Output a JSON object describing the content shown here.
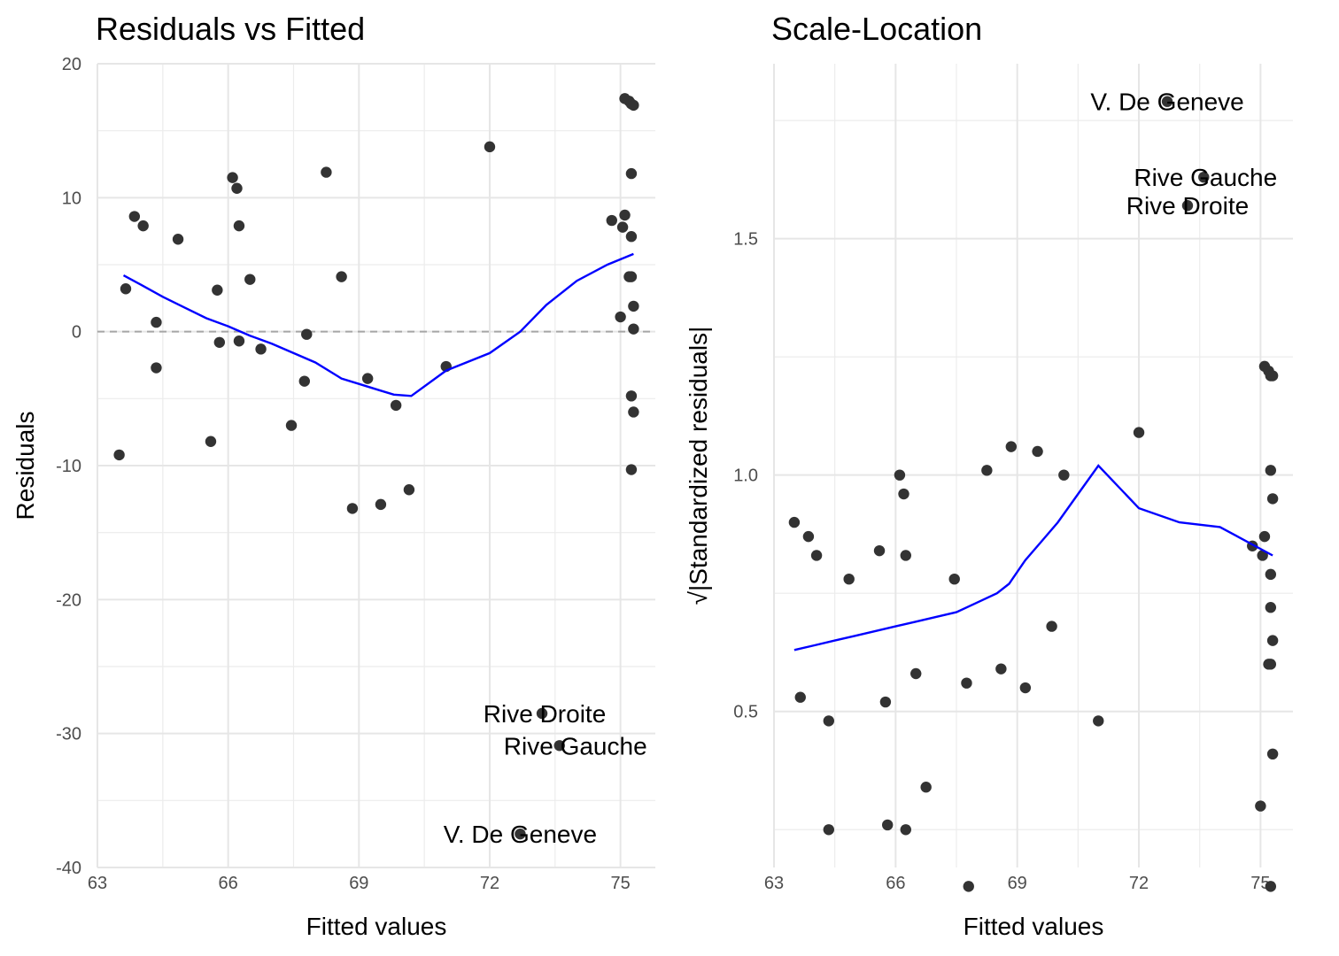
{
  "chart_data": [
    {
      "type": "scatter",
      "title": "Residuals vs Fitted",
      "xlabel": "Fitted values",
      "ylabel": "Residuals",
      "xlim": [
        63,
        75.8
      ],
      "ylim": [
        -40,
        20
      ],
      "xticks": [
        63,
        66,
        69,
        72,
        75
      ],
      "yticks": [
        -40,
        -30,
        -20,
        -10,
        0,
        10,
        20
      ],
      "grid": true,
      "reference_line": {
        "y": 0,
        "style": "dashed",
        "color": "#a6a6a6"
      },
      "point_color": "#333333",
      "smooth_color": "#0000ff",
      "points": [
        [
          63.5,
          -9.2
        ],
        [
          63.65,
          3.2
        ],
        [
          63.85,
          8.6
        ],
        [
          64.05,
          7.9
        ],
        [
          64.35,
          0.7
        ],
        [
          64.35,
          -2.7
        ],
        [
          64.85,
          6.9
        ],
        [
          65.6,
          -8.2
        ],
        [
          65.75,
          3.1
        ],
        [
          65.8,
          -0.8
        ],
        [
          66.1,
          11.5
        ],
        [
          66.2,
          10.7
        ],
        [
          66.25,
          7.9
        ],
        [
          66.25,
          -0.7
        ],
        [
          66.5,
          3.9
        ],
        [
          66.75,
          -1.3
        ],
        [
          67.45,
          -7.0
        ],
        [
          67.75,
          -3.7
        ],
        [
          67.8,
          -0.2
        ],
        [
          68.25,
          11.9
        ],
        [
          68.6,
          4.1
        ],
        [
          68.85,
          -13.2
        ],
        [
          69.2,
          -3.5
        ],
        [
          69.5,
          -12.9
        ],
        [
          69.85,
          -5.5
        ],
        [
          70.15,
          -11.8
        ],
        [
          71.0,
          -2.6
        ],
        [
          72.0,
          13.8
        ],
        [
          72.7,
          -37.5
        ],
        [
          73.2,
          -28.5
        ],
        [
          73.6,
          -30.9
        ],
        [
          74.8,
          8.3
        ],
        [
          75.0,
          1.1
        ],
        [
          75.05,
          7.8
        ],
        [
          75.1,
          8.7
        ],
        [
          75.1,
          17.4
        ],
        [
          75.2,
          17.2
        ],
        [
          75.2,
          4.1
        ],
        [
          75.25,
          7.1
        ],
        [
          75.25,
          17.0
        ],
        [
          75.3,
          16.9
        ],
        [
          75.25,
          4.1
        ],
        [
          75.25,
          11.8
        ],
        [
          75.3,
          1.9
        ],
        [
          75.3,
          0.2
        ],
        [
          75.25,
          -4.8
        ],
        [
          75.3,
          -6.0
        ],
        [
          75.25,
          -10.3
        ]
      ],
      "smooth": [
        [
          63.6,
          4.2
        ],
        [
          64.0,
          3.5
        ],
        [
          64.5,
          2.6
        ],
        [
          65.0,
          1.8
        ],
        [
          65.5,
          1.0
        ],
        [
          66.0,
          0.4
        ],
        [
          66.5,
          -0.3
        ],
        [
          67.0,
          -0.9
        ],
        [
          67.5,
          -1.6
        ],
        [
          68.0,
          -2.3
        ],
        [
          68.6,
          -3.5
        ],
        [
          69.0,
          -3.9
        ],
        [
          69.5,
          -4.4
        ],
        [
          69.8,
          -4.7
        ],
        [
          70.2,
          -4.8
        ],
        [
          71.0,
          -2.9
        ],
        [
          72.0,
          -1.6
        ],
        [
          72.7,
          0.0
        ],
        [
          73.3,
          2.0
        ],
        [
          74.0,
          3.8
        ],
        [
          74.7,
          5.0
        ],
        [
          75.3,
          5.8
        ]
      ],
      "annotations": [
        {
          "text": "V. De Geneve",
          "x": 72.7,
          "y": -37.5
        },
        {
          "text": "Rive Droite",
          "x": 73.2,
          "y": -28.5
        },
        {
          "text": "Rive Gauche",
          "x": 73.6,
          "y": -30.9
        }
      ]
    },
    {
      "type": "scatter",
      "title": "Scale-Location",
      "xlabel": "Fitted values",
      "ylabel": "√|Standardized residuals|",
      "xlim": [
        63,
        75.8
      ],
      "ylim": [
        0.17,
        1.87
      ],
      "xticks": [
        63,
        66,
        69,
        72,
        75
      ],
      "yticks": [
        0.5,
        1.0,
        1.5
      ],
      "grid": true,
      "point_color": "#333333",
      "smooth_color": "#0000ff",
      "points": [
        [
          63.5,
          0.9
        ],
        [
          63.65,
          0.53
        ],
        [
          63.85,
          0.87
        ],
        [
          64.05,
          0.83
        ],
        [
          64.35,
          0.48
        ],
        [
          64.35,
          0.25
        ],
        [
          64.85,
          0.78
        ],
        [
          65.6,
          0.84
        ],
        [
          65.75,
          0.52
        ],
        [
          65.8,
          0.26
        ],
        [
          66.1,
          1.0
        ],
        [
          66.2,
          0.96
        ],
        [
          66.25,
          0.83
        ],
        [
          66.25,
          0.25
        ],
        [
          66.5,
          0.58
        ],
        [
          66.75,
          0.34
        ],
        [
          67.45,
          0.78
        ],
        [
          67.75,
          0.56
        ],
        [
          67.8,
          0.13
        ],
        [
          68.25,
          1.01
        ],
        [
          68.6,
          0.59
        ],
        [
          68.85,
          1.06
        ],
        [
          69.2,
          0.55
        ],
        [
          69.5,
          1.05
        ],
        [
          69.85,
          0.68
        ],
        [
          70.15,
          1.0
        ],
        [
          71.0,
          0.48
        ],
        [
          72.0,
          1.09
        ],
        [
          72.7,
          1.79
        ],
        [
          73.2,
          1.57
        ],
        [
          73.6,
          1.63
        ],
        [
          74.8,
          0.85
        ],
        [
          75.0,
          0.3
        ],
        [
          75.05,
          0.83
        ],
        [
          75.1,
          0.87
        ],
        [
          75.1,
          1.23
        ],
        [
          75.2,
          1.22
        ],
        [
          75.2,
          0.6
        ],
        [
          75.25,
          0.79
        ],
        [
          75.25,
          1.21
        ],
        [
          75.3,
          1.21
        ],
        [
          75.25,
          0.6
        ],
        [
          75.25,
          1.01
        ],
        [
          75.3,
          0.65
        ],
        [
          75.3,
          0.41
        ],
        [
          75.25,
          0.72
        ],
        [
          75.3,
          0.95
        ],
        [
          75.25,
          0.13
        ]
      ],
      "smooth": [
        [
          63.5,
          0.63
        ],
        [
          64.0,
          0.64
        ],
        [
          64.5,
          0.65
        ],
        [
          65.0,
          0.66
        ],
        [
          65.5,
          0.67
        ],
        [
          66.0,
          0.68
        ],
        [
          66.5,
          0.69
        ],
        [
          67.0,
          0.7
        ],
        [
          67.5,
          0.71
        ],
        [
          68.0,
          0.73
        ],
        [
          68.5,
          0.75
        ],
        [
          68.8,
          0.77
        ],
        [
          69.2,
          0.82
        ],
        [
          69.6,
          0.86
        ],
        [
          70.0,
          0.9
        ],
        [
          70.5,
          0.96
        ],
        [
          71.0,
          1.02
        ],
        [
          72.0,
          0.93
        ],
        [
          73.0,
          0.9
        ],
        [
          74.0,
          0.89
        ],
        [
          75.3,
          0.83
        ]
      ],
      "annotations": [
        {
          "text": "V. De Geneve",
          "x": 72.7,
          "y": 1.79
        },
        {
          "text": "Rive Gauche",
          "x": 73.6,
          "y": 1.63
        },
        {
          "text": "Rive Droite",
          "x": 73.2,
          "y": 1.57
        }
      ]
    }
  ]
}
